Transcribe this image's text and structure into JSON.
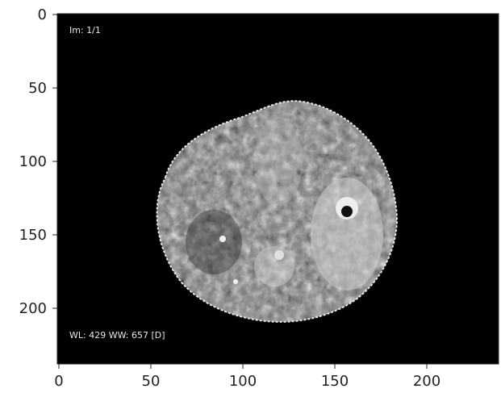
{
  "image": {
    "overlay_top": "Im: 1/1",
    "overlay_bottom": "WL: 429 WW: 657 [D]",
    "description_colors": {
      "background": "#000000",
      "axes_text": "#222222",
      "overlay_text": "#e8e8e8"
    }
  },
  "axes": {
    "x_ticks": [
      "0",
      "50",
      "100",
      "150",
      "200"
    ],
    "y_ticks": [
      "0",
      "50",
      "100",
      "150",
      "200"
    ],
    "xlim": [
      0,
      240
    ],
    "ylim": [
      240,
      0
    ]
  }
}
